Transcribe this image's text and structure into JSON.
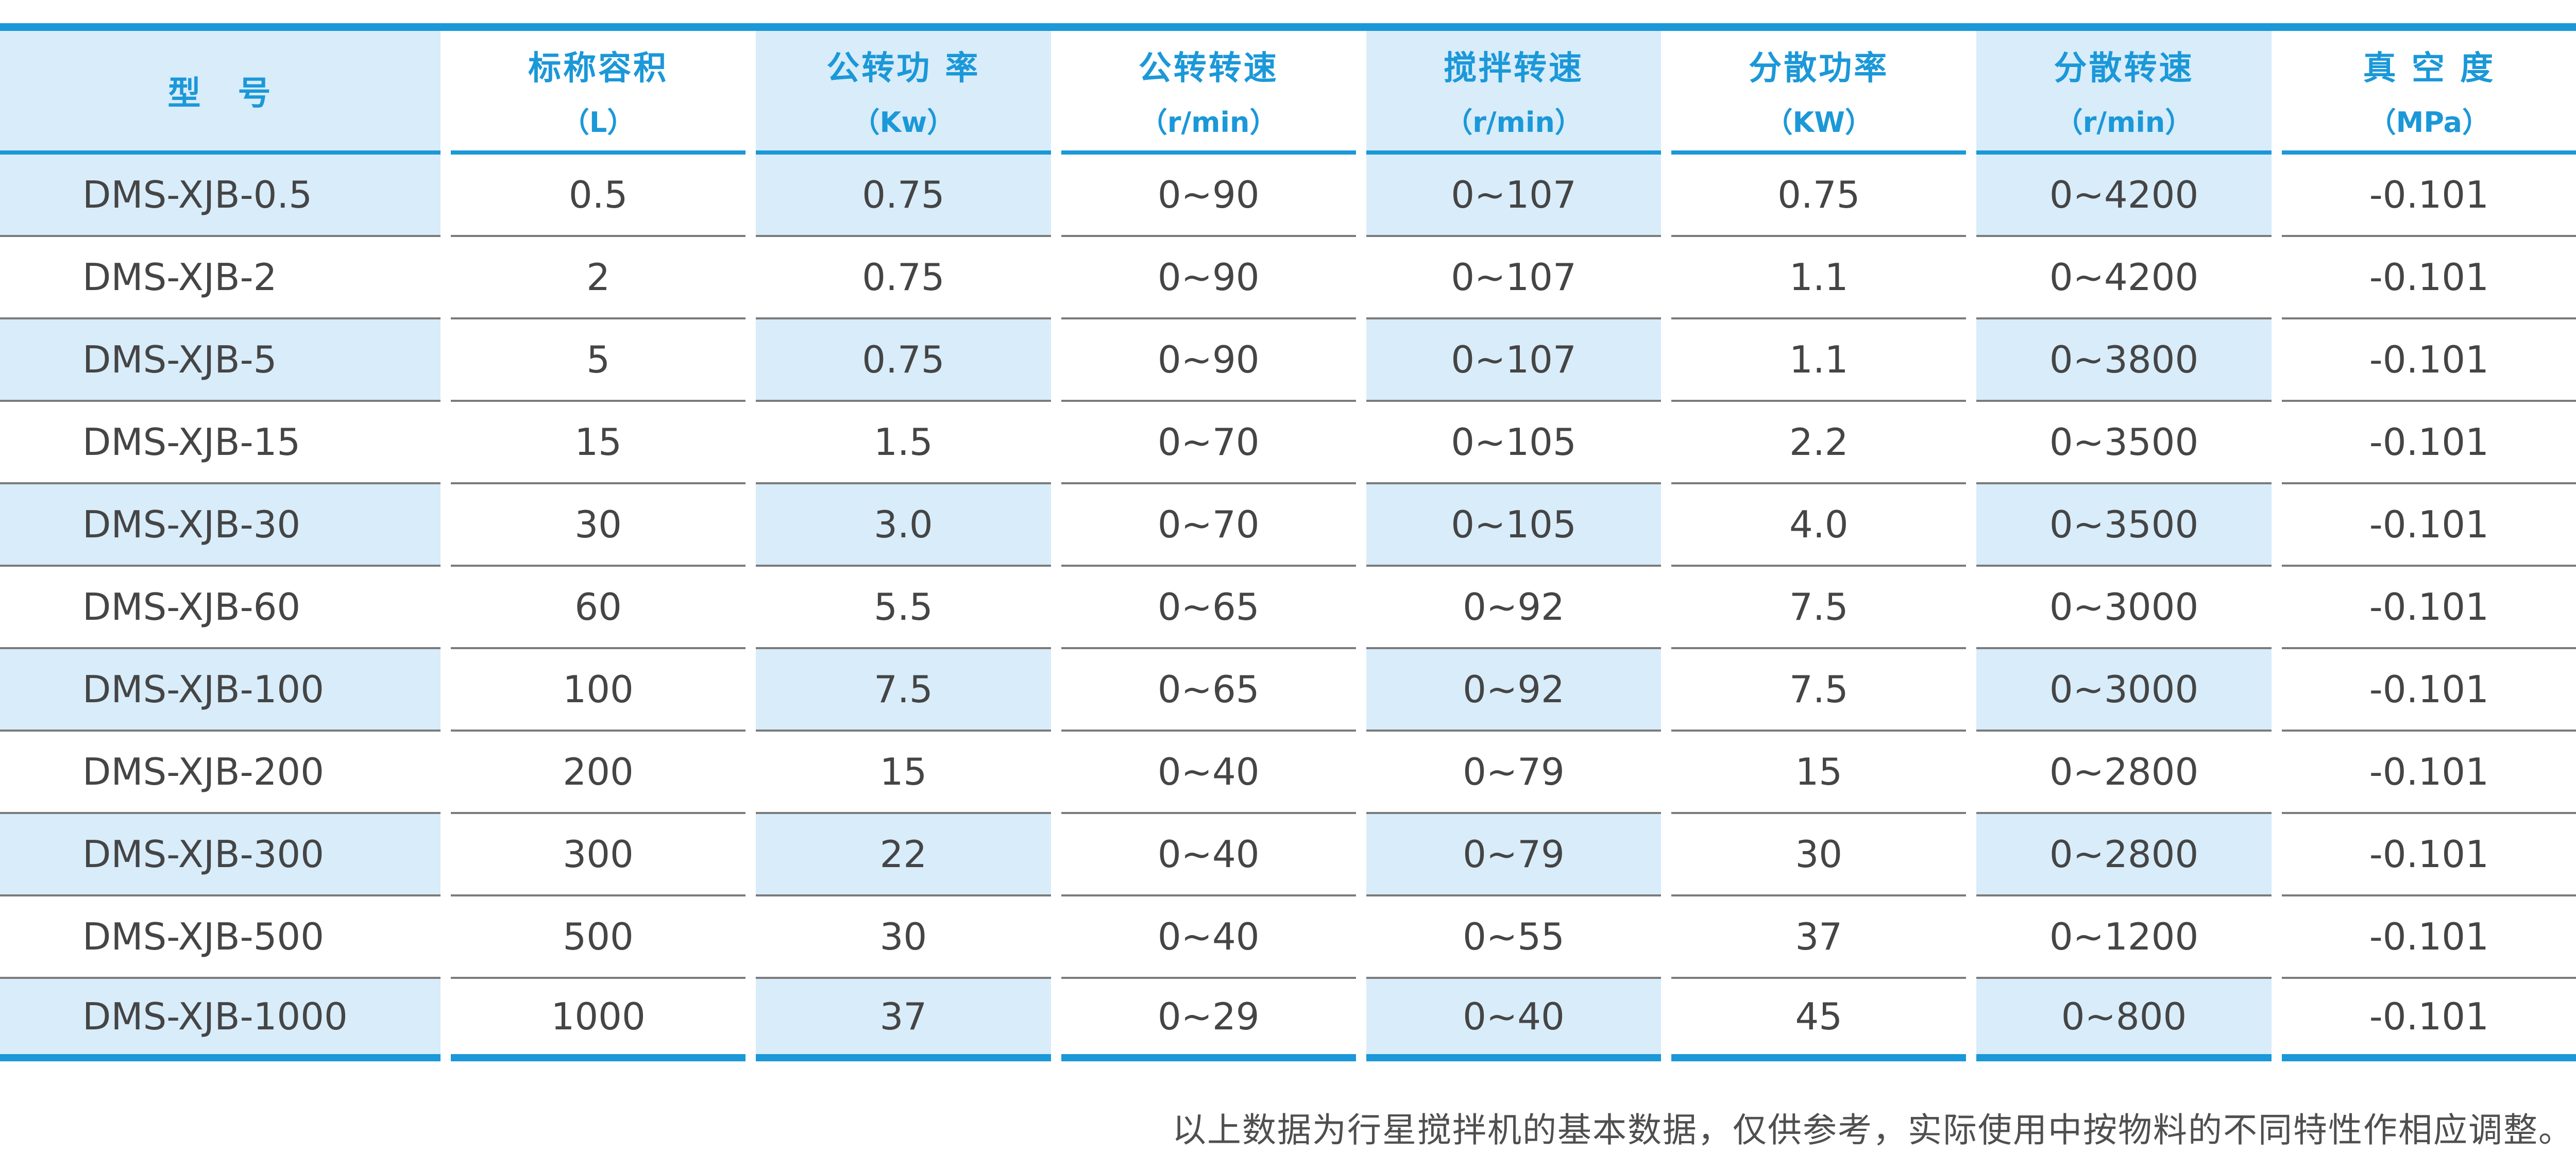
{
  "colors": {
    "accent": "#1b98d8",
    "stripe": "#d8ecfa",
    "body_text": "#454545",
    "row_separator": "#7b7b7b",
    "footer_text": "#4f4f4f"
  },
  "table": {
    "columns": [
      {
        "label": "型　号",
        "unit": ""
      },
      {
        "label": "标称容积",
        "unit": "（L）"
      },
      {
        "label": "公转功 率",
        "unit": "（Kw）"
      },
      {
        "label": "公转转速",
        "unit": "（r/min）"
      },
      {
        "label": "搅拌转速",
        "unit": "（r/min）"
      },
      {
        "label": "分散功率",
        "unit": "（KW）"
      },
      {
        "label": "分散转速",
        "unit": "（r/min）"
      },
      {
        "label": "真 空 度",
        "unit": "（MPa）"
      }
    ],
    "rows": [
      [
        "DMS-XJB-0.5",
        "0.5",
        "0.75",
        "0~90",
        "0~107",
        "0.75",
        "0~4200",
        "-0.101"
      ],
      [
        "DMS-XJB-2",
        "2",
        "0.75",
        "0~90",
        "0~107",
        "1.1",
        "0~4200",
        "-0.101"
      ],
      [
        "DMS-XJB-5",
        "5",
        "0.75",
        "0~90",
        "0~107",
        "1.1",
        "0~3800",
        "-0.101"
      ],
      [
        "DMS-XJB-15",
        "15",
        "1.5",
        "0~70",
        "0~105",
        "2.2",
        "0~3500",
        "-0.101"
      ],
      [
        "DMS-XJB-30",
        "30",
        "3.0",
        "0~70",
        "0~105",
        "4.0",
        "0~3500",
        "-0.101"
      ],
      [
        "DMS-XJB-60",
        "60",
        "5.5",
        "0~65",
        "0~92",
        "7.5",
        "0~3000",
        "-0.101"
      ],
      [
        "DMS-XJB-100",
        "100",
        "7.5",
        "0~65",
        "0~92",
        "7.5",
        "0~3000",
        "-0.101"
      ],
      [
        "DMS-XJB-200",
        "200",
        "15",
        "0~40",
        "0~79",
        "15",
        "0~2800",
        "-0.101"
      ],
      [
        "DMS-XJB-300",
        "300",
        "22",
        "0~40",
        "0~79",
        "30",
        "0~2800",
        "-0.101"
      ],
      [
        "DMS-XJB-500",
        "500",
        "30",
        "0~40",
        "0~55",
        "37",
        "0~1200",
        "-0.101"
      ],
      [
        "DMS-XJB-1000",
        "1000",
        "37",
        "0~29",
        "0~40",
        "45",
        "0~800",
        "-0.101"
      ]
    ]
  },
  "footer": {
    "note": "以上数据为行星搅拌机的基本数据，仅供参考，实际使用中按物料的不同特性作相应调整。"
  }
}
